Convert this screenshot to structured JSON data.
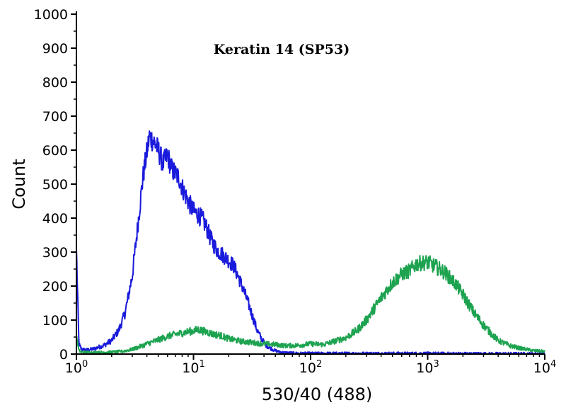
{
  "chart_data": {
    "type": "line",
    "title": "Keratin 14 (SP53)",
    "xlabel": "530/40 (488)",
    "ylabel": "Count",
    "x_scale": "log",
    "xlim": [
      1,
      10000
    ],
    "ylim": [
      0,
      1000
    ],
    "grid": false,
    "legend": "none",
    "x_ticks": [
      {
        "value": 1,
        "base": "10",
        "exp": "0"
      },
      {
        "value": 10,
        "base": "10",
        "exp": "1"
      },
      {
        "value": 100,
        "base": "10",
        "exp": "2"
      },
      {
        "value": 1000,
        "base": "10",
        "exp": "3"
      },
      {
        "value": 10000,
        "base": "10",
        "exp": "4"
      }
    ],
    "y_ticks": [
      {
        "value": 0,
        "label": "0"
      },
      {
        "value": 100,
        "label": "100"
      },
      {
        "value": 200,
        "label": "200"
      },
      {
        "value": 300,
        "label": "300"
      },
      {
        "value": 400,
        "label": "400"
      },
      {
        "value": 500,
        "label": "500"
      },
      {
        "value": 600,
        "label": "600"
      },
      {
        "value": 700,
        "label": "700"
      },
      {
        "value": 800,
        "label": "800"
      },
      {
        "value": 900,
        "label": "900"
      },
      {
        "value": 1000,
        "label": "1000"
      }
    ],
    "series": [
      {
        "color": "#1a1adc",
        "x": [
          1,
          1.05,
          1.1,
          1.2,
          1.4,
          1.7,
          2.0,
          2.3,
          2.6,
          3.0,
          3.3,
          3.7,
          4.2,
          4.6,
          5.0,
          5.5,
          6.0,
          6.5,
          7.0,
          7.5,
          8.0,
          9.0,
          10,
          11,
          12,
          13,
          14,
          15,
          16,
          18,
          20,
          22,
          24,
          26,
          28,
          30,
          32,
          35,
          38,
          42,
          45,
          50,
          55,
          60,
          70,
          80,
          100,
          200,
          500,
          1000,
          3000,
          10000
        ],
        "y": [
          310,
          30,
          15,
          12,
          15,
          25,
          40,
          70,
          120,
          230,
          360,
          520,
          640,
          625,
          600,
          560,
          585,
          545,
          530,
          520,
          490,
          450,
          420,
          410,
          395,
          370,
          340,
          320,
          305,
          290,
          275,
          260,
          230,
          200,
          170,
          140,
          110,
          70,
          45,
          25,
          18,
          10,
          6,
          4,
          3,
          2,
          2,
          2,
          2,
          2,
          1,
          1
        ]
      },
      {
        "color": "#1da350",
        "x": [
          1,
          1.05,
          1.1,
          1.3,
          1.6,
          2.0,
          2.5,
          3.0,
          3.5,
          4.0,
          5.0,
          6.0,
          7.0,
          8.0,
          9.0,
          10,
          11,
          12,
          13,
          15,
          17,
          20,
          25,
          30,
          35,
          40,
          50,
          60,
          70,
          80,
          100,
          130,
          150,
          200,
          250,
          300,
          350,
          400,
          500,
          600,
          700,
          800,
          900,
          1000,
          1100,
          1200,
          1400,
          1700,
          2000,
          2500,
          3000,
          3500,
          4000,
          5000,
          6000,
          8000,
          10000
        ],
        "y": [
          55,
          10,
          6,
          5,
          5,
          6,
          8,
          14,
          22,
          30,
          42,
          52,
          58,
          62,
          66,
          68,
          72,
          68,
          65,
          58,
          55,
          45,
          38,
          35,
          32,
          30,
          28,
          25,
          25,
          26,
          30,
          28,
          35,
          48,
          70,
          100,
          135,
          165,
          210,
          235,
          245,
          265,
          268,
          270,
          262,
          255,
          240,
          210,
          175,
          120,
          85,
          60,
          40,
          25,
          18,
          10,
          8
        ]
      }
    ]
  }
}
